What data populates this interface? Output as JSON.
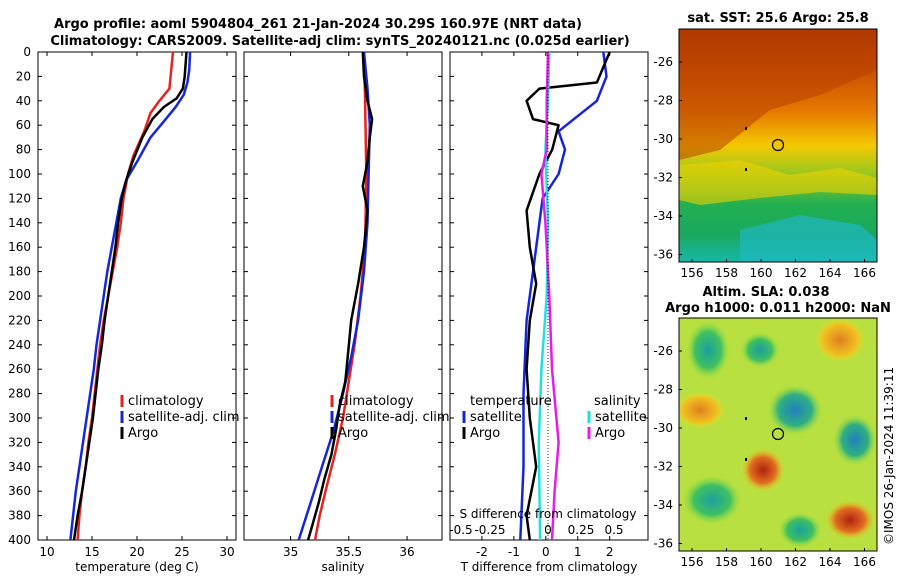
{
  "title": {
    "line1": "Argo profile: aoml 5904804_261 21-Jan-2024 30.29S 160.97E (NRT data)",
    "line2": "Climatology: CARS2009. Satellite-adj clim: synTS_20240121.nc (0.025d earlier)"
  },
  "colors": {
    "climatology": "#e8231f",
    "satellite": "#1426d8",
    "argo": "#000000",
    "satellite_s": "#22e0e0",
    "argo_s": "#e81ce8"
  },
  "chart_data": [
    {
      "type": "line",
      "id": "temperature",
      "xlabel": "temperature (deg C)",
      "ylabel": "",
      "xlim": [
        9,
        31
      ],
      "ylim": [
        400,
        0
      ],
      "xticks": [
        "10",
        "15",
        "20",
        "25",
        "30"
      ],
      "yticks": [
        "0",
        "20",
        "40",
        "60",
        "80",
        "100",
        "120",
        "140",
        "160",
        "180",
        "200",
        "220",
        "240",
        "260",
        "280",
        "300",
        "320",
        "340",
        "360",
        "380",
        "400"
      ],
      "legend": [
        "climatology",
        "satellite-adj. clim",
        "Argo"
      ],
      "series": [
        {
          "name": "climatology",
          "color": "climatology",
          "points": [
            [
              24,
              0
            ],
            [
              23.8,
              15
            ],
            [
              23.6,
              30
            ],
            [
              22.5,
              40
            ],
            [
              21.5,
              50
            ],
            [
              20.8,
              65
            ],
            [
              19.6,
              85
            ],
            [
              19,
              100
            ],
            [
              18.5,
              120
            ],
            [
              18.2,
              140
            ],
            [
              17.8,
              160
            ],
            [
              17.3,
              180
            ],
            [
              16.8,
              200
            ],
            [
              16.3,
              220
            ],
            [
              15.9,
              240
            ],
            [
              15.6,
              260
            ],
            [
              15.3,
              280
            ],
            [
              15,
              300
            ],
            [
              14.6,
              320
            ],
            [
              14.3,
              340
            ],
            [
              13.9,
              360
            ],
            [
              13.6,
              380
            ],
            [
              13.4,
              400
            ]
          ]
        },
        {
          "name": "satellite-adj. clim",
          "color": "satellite",
          "points": [
            [
              25.9,
              0
            ],
            [
              25.8,
              15
            ],
            [
              25.6,
              25
            ],
            [
              25.2,
              35
            ],
            [
              24.3,
              45
            ],
            [
              23.2,
              55
            ],
            [
              21.5,
              70
            ],
            [
              20,
              90
            ],
            [
              18.8,
              105
            ],
            [
              18.2,
              120
            ],
            [
              17.7,
              140
            ],
            [
              17.2,
              160
            ],
            [
              16.7,
              180
            ],
            [
              16.3,
              200
            ],
            [
              15.9,
              220
            ],
            [
              15.5,
              240
            ],
            [
              15.2,
              260
            ],
            [
              14.8,
              280
            ],
            [
              14.4,
              300
            ],
            [
              14,
              320
            ],
            [
              13.6,
              340
            ],
            [
              13.2,
              360
            ],
            [
              12.9,
              380
            ],
            [
              12.6,
              400
            ]
          ]
        },
        {
          "name": "Argo",
          "color": "argo",
          "points": [
            [
              25.5,
              0
            ],
            [
              25.3,
              20
            ],
            [
              25.1,
              30
            ],
            [
              24.4,
              38
            ],
            [
              23,
              45
            ],
            [
              21.7,
              55
            ],
            [
              20.6,
              70
            ],
            [
              19.5,
              90
            ],
            [
              18.8,
              105
            ],
            [
              18.3,
              120
            ],
            [
              17.9,
              140
            ],
            [
              17.6,
              160
            ],
            [
              17.2,
              180
            ],
            [
              16.8,
              200
            ],
            [
              16.4,
              220
            ],
            [
              16.1,
              240
            ],
            [
              15.7,
              260
            ],
            [
              15.4,
              280
            ],
            [
              15.1,
              300
            ],
            [
              14.7,
              320
            ],
            [
              14.3,
              340
            ],
            [
              13.9,
              360
            ],
            [
              13.4,
              380
            ],
            [
              13,
              400
            ]
          ]
        }
      ]
    },
    {
      "type": "line",
      "id": "salinity",
      "xlabel": "salinity",
      "ylabel": "",
      "xlim": [
        34.6,
        36.3
      ],
      "ylim": [
        400,
        0
      ],
      "xticks": [
        "35",
        "35.5",
        "36"
      ],
      "legend": [
        "climatology",
        "satellite-adj. clim",
        "Argo"
      ],
      "series": [
        {
          "name": "climatology",
          "color": "climatology",
          "points": [
            [
              35.63,
              0
            ],
            [
              35.64,
              40
            ],
            [
              35.65,
              100
            ],
            [
              35.64,
              160
            ],
            [
              35.6,
              200
            ],
            [
              35.55,
              240
            ],
            [
              35.5,
              270
            ],
            [
              35.45,
              300
            ],
            [
              35.38,
              330
            ],
            [
              35.3,
              360
            ],
            [
              35.25,
              380
            ],
            [
              35.21,
              400
            ]
          ]
        },
        {
          "name": "satellite-adj. clim",
          "color": "satellite",
          "points": [
            [
              35.63,
              0
            ],
            [
              35.66,
              30
            ],
            [
              35.68,
              60
            ],
            [
              35.67,
              100
            ],
            [
              35.66,
              140
            ],
            [
              35.63,
              180
            ],
            [
              35.58,
              220
            ],
            [
              35.52,
              250
            ],
            [
              35.45,
              280
            ],
            [
              35.37,
              310
            ],
            [
              35.27,
              340
            ],
            [
              35.17,
              370
            ],
            [
              35.07,
              400
            ]
          ]
        },
        {
          "name": "Argo",
          "color": "argo",
          "points": [
            [
              35.62,
              0
            ],
            [
              35.63,
              20
            ],
            [
              35.66,
              40
            ],
            [
              35.7,
              55
            ],
            [
              35.68,
              70
            ],
            [
              35.66,
              90
            ],
            [
              35.62,
              110
            ],
            [
              35.66,
              130
            ],
            [
              35.63,
              160
            ],
            [
              35.58,
              190
            ],
            [
              35.52,
              220
            ],
            [
              35.49,
              250
            ],
            [
              35.47,
              270
            ],
            [
              35.42,
              290
            ],
            [
              35.39,
              310
            ],
            [
              35.35,
              330
            ],
            [
              35.29,
              350
            ],
            [
              35.24,
              370
            ],
            [
              35.18,
              390
            ],
            [
              35.15,
              400
            ]
          ]
        }
      ]
    },
    {
      "type": "line",
      "id": "difference",
      "xlabel": "T difference from climatology",
      "xlabel_top": "S difference from climatology",
      "xlim": [
        -3,
        3.2
      ],
      "ylim": [
        400,
        0
      ],
      "xticks": [
        "-2",
        "-1",
        "0",
        "1",
        "2"
      ],
      "xticks_s": [
        "-0.5",
        "-0.25",
        "0",
        "0.25",
        "0.5"
      ],
      "legend_t_title": "temperature",
      "legend_s_title": "salinity",
      "legend": [
        "satellite",
        "Argo",
        "satellite",
        "Argo"
      ],
      "series": [
        {
          "name": "temperature satellite",
          "color": "satellite",
          "points": [
            [
              1.8,
              0
            ],
            [
              1.9,
              20
            ],
            [
              1.6,
              40
            ],
            [
              0.4,
              65
            ],
            [
              0.6,
              80
            ],
            [
              0.4,
              100
            ],
            [
              -0.1,
              120
            ],
            [
              -0.3,
              160
            ],
            [
              -0.6,
              220
            ],
            [
              -0.7,
              280
            ],
            [
              -0.7,
              340
            ],
            [
              -0.8,
              400
            ]
          ]
        },
        {
          "name": "temperature Argo",
          "color": "argo",
          "points": [
            [
              2,
              0
            ],
            [
              1.6,
              25
            ],
            [
              -0.2,
              30
            ],
            [
              -0.6,
              40
            ],
            [
              -0.4,
              55
            ],
            [
              0.4,
              60
            ],
            [
              0.2,
              80
            ],
            [
              -0.2,
              100
            ],
            [
              -0.6,
              130
            ],
            [
              -0.5,
              160
            ],
            [
              -0.3,
              190
            ],
            [
              -0.5,
              220
            ],
            [
              -0.6,
              260
            ],
            [
              -0.5,
              300
            ],
            [
              -0.3,
              340
            ],
            [
              -0.6,
              380
            ],
            [
              -0.5,
              400
            ]
          ]
        },
        {
          "name": "salinity satellite",
          "color": "satellite_s",
          "points": [
            [
              0.01,
              0
            ],
            [
              0,
              40
            ],
            [
              -0.02,
              80
            ],
            [
              0,
              140
            ],
            [
              -0.01,
              200
            ],
            [
              -0.05,
              260
            ],
            [
              -0.07,
              320
            ],
            [
              -0.06,
              400
            ]
          ]
        },
        {
          "name": "salinity Argo",
          "color": "argo_s",
          "points": [
            [
              0,
              0
            ],
            [
              -0.01,
              40
            ],
            [
              -0.01,
              80
            ],
            [
              -0.05,
              100
            ],
            [
              -0.02,
              140
            ],
            [
              0.01,
              200
            ],
            [
              0.03,
              260
            ],
            [
              0.08,
              320
            ],
            [
              0.05,
              360
            ],
            [
              0.03,
              400
            ]
          ]
        }
      ]
    }
  ],
  "maps": {
    "sst": {
      "title": "sat. SST: 25.6 Argo: 25.8",
      "xticks": [
        "156",
        "158",
        "160",
        "162",
        "164",
        "166"
      ],
      "yticks": [
        "-26",
        "-28",
        "-30",
        "-32",
        "-34",
        "-36"
      ]
    },
    "sla": {
      "title1": "Altim. SLA: 0.038",
      "title2": "Argo h1000: 0.011 h2000: NaN",
      "xticks": [
        "156",
        "158",
        "160",
        "162",
        "164",
        "166"
      ],
      "yticks": [
        "-26",
        "-28",
        "-30",
        "-32",
        "-34",
        "-36"
      ]
    },
    "float_lon": 160.97,
    "float_lat": -30.29
  },
  "credit": "©IMOS 26-Jan-2024 11:39:11"
}
